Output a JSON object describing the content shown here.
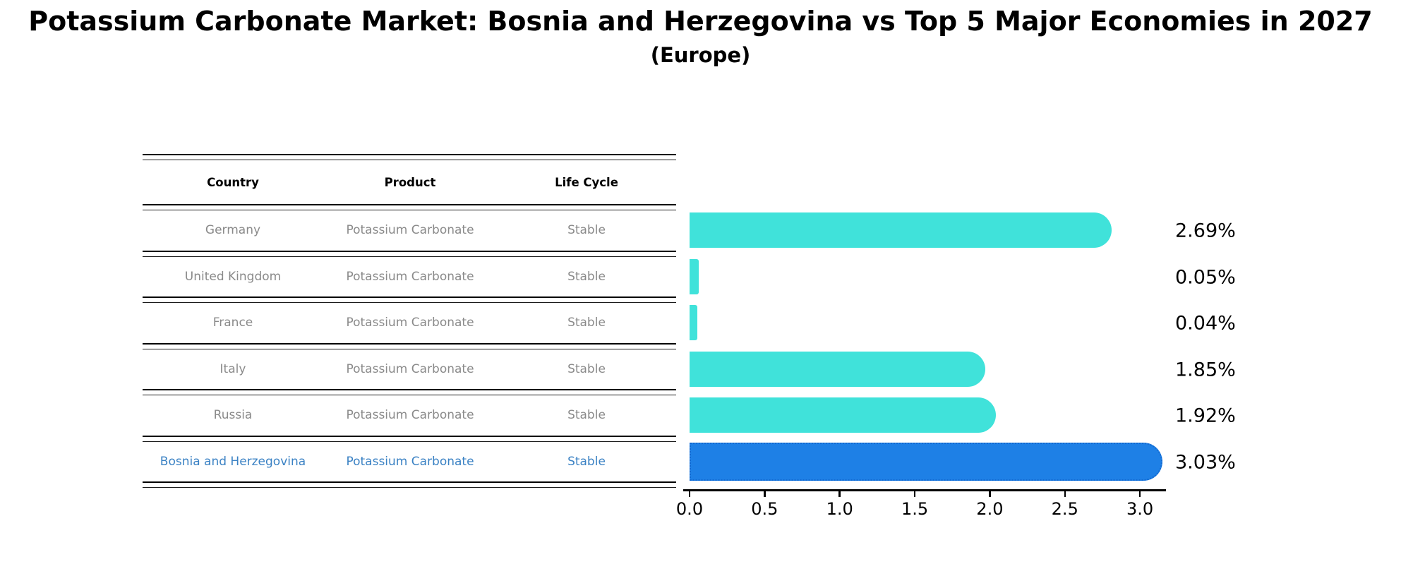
{
  "title": "Potassium Carbonate Market: Bosnia and Herzegovina vs Top 5 Major Economies in 2027",
  "subtitle": "(Europe)",
  "table": {
    "headers": [
      "Country",
      "Product",
      "Life Cycle"
    ],
    "rows": [
      {
        "country": "Germany",
        "product": "Potassium Carbonate",
        "life_cycle": "Stable",
        "highlight": false
      },
      {
        "country": "United Kingdom",
        "product": "Potassium Carbonate",
        "life_cycle": "Stable",
        "highlight": false
      },
      {
        "country": "France",
        "product": "Potassium Carbonate",
        "life_cycle": "Stable",
        "highlight": false
      },
      {
        "country": "Italy",
        "product": "Potassium Carbonate",
        "life_cycle": "Stable",
        "highlight": false
      },
      {
        "country": "Russia",
        "product": "Potassium Carbonate",
        "life_cycle": "Stable",
        "highlight": false
      },
      {
        "country": "Bosnia and Herzegovina",
        "product": "Potassium Carbonate",
        "life_cycle": "Stable",
        "highlight": true
      }
    ]
  },
  "chart_data": {
    "type": "bar",
    "orientation": "horizontal",
    "categories": [
      "Germany",
      "United Kingdom",
      "France",
      "Italy",
      "Russia",
      "Bosnia and Herzegovina"
    ],
    "values": [
      2.69,
      0.05,
      0.04,
      1.85,
      1.92,
      3.03
    ],
    "value_labels": [
      "2.69%",
      "0.05%",
      "0.04%",
      "1.85%",
      "1.92%",
      "3.03%"
    ],
    "highlight_index": 5,
    "x_ticks": [
      "0.0",
      "0.5",
      "1.0",
      "1.5",
      "2.0",
      "2.5",
      "3.0"
    ],
    "x_tick_values": [
      0.0,
      0.5,
      1.0,
      1.5,
      2.0,
      2.5,
      3.0
    ],
    "xlim": [
      0.0,
      3.2
    ],
    "grid": false,
    "legend": "none"
  },
  "colors": {
    "bar": "#40e2da",
    "highlight_bar": "#1e80e6",
    "highlight_bar_border": "#1268d0",
    "highlight_text": "#3b82c4",
    "table_text": "#8a8a8a",
    "header_text": "#000000"
  }
}
